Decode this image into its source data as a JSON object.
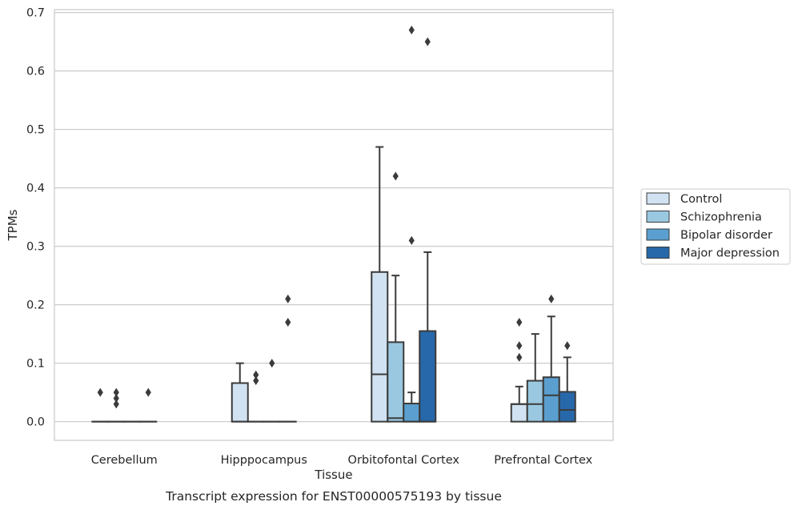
{
  "caption": "Transcript expression for ENST00000575193 by tissue",
  "chart_data": {
    "type": "box",
    "xlabel": "Tissue",
    "ylabel": "TPMs",
    "ylim": [
      -0.032,
      0.705
    ],
    "yticks": [
      "0.0",
      "0.1",
      "0.2",
      "0.3",
      "0.4",
      "0.5",
      "0.6",
      "0.7"
    ],
    "grid": "horizontal",
    "legend_position": "right",
    "categories": [
      "Cerebellum",
      "Hipppocampus",
      "Orbitofontal Cortex",
      "Prefrontal Cortex"
    ],
    "series": [
      {
        "name": "Control",
        "color": "#d1e2f2",
        "boxes": [
          {
            "q1": 0,
            "median": 0,
            "q3": 0,
            "whisker_low": 0,
            "whisker_high": 0,
            "outliers": [
              0.05
            ]
          },
          {
            "q1": 0,
            "median": 0,
            "q3": 0.066,
            "whisker_low": 0,
            "whisker_high": 0.1,
            "outliers": []
          },
          {
            "q1": 0,
            "median": 0.081,
            "q3": 0.256,
            "whisker_low": 0,
            "whisker_high": 0.47,
            "outliers": []
          },
          {
            "q1": 0,
            "median": 0.03,
            "q3": 0.03,
            "whisker_low": 0,
            "whisker_high": 0.06,
            "outliers": [
              0.11,
              0.13,
              0.17
            ]
          }
        ]
      },
      {
        "name": "Schizophrenia",
        "color": "#9ac8e0",
        "boxes": [
          {
            "q1": 0,
            "median": 0,
            "q3": 0,
            "whisker_low": 0,
            "whisker_high": 0,
            "outliers": [
              0.03,
              0.04,
              0.05
            ]
          },
          {
            "q1": 0,
            "median": 0,
            "q3": 0,
            "whisker_low": 0,
            "whisker_high": 0,
            "outliers": [
              0.07,
              0.08
            ]
          },
          {
            "q1": 0,
            "median": 0.006,
            "q3": 0.136,
            "whisker_low": 0,
            "whisker_high": 0.25,
            "outliers": [
              0.42
            ]
          },
          {
            "q1": 0,
            "median": 0.03,
            "q3": 0.07,
            "whisker_low": 0,
            "whisker_high": 0.15,
            "outliers": []
          }
        ]
      },
      {
        "name": "Bipolar disorder",
        "color": "#5a9fcf",
        "boxes": [
          {
            "q1": 0,
            "median": 0,
            "q3": 0,
            "whisker_low": 0,
            "whisker_high": 0,
            "outliers": []
          },
          {
            "q1": 0,
            "median": 0,
            "q3": 0,
            "whisker_low": 0,
            "whisker_high": 0,
            "outliers": [
              0.1
            ]
          },
          {
            "q1": 0,
            "median": 0,
            "q3": 0.031,
            "whisker_low": 0,
            "whisker_high": 0.05,
            "outliers": [
              0.31,
              0.67
            ]
          },
          {
            "q1": 0,
            "median": 0.045,
            "q3": 0.076,
            "whisker_low": 0,
            "whisker_high": 0.18,
            "outliers": [
              0.21
            ]
          }
        ]
      },
      {
        "name": "Major depression",
        "color": "#2768aa",
        "boxes": [
          {
            "q1": 0,
            "median": 0,
            "q3": 0,
            "whisker_low": 0,
            "whisker_high": 0,
            "outliers": [
              0.05
            ]
          },
          {
            "q1": 0,
            "median": 0,
            "q3": 0,
            "whisker_low": 0,
            "whisker_high": 0,
            "outliers": [
              0.17,
              0.21
            ]
          },
          {
            "q1": 0,
            "median": 0,
            "q3": 0.155,
            "whisker_low": 0,
            "whisker_high": 0.29,
            "outliers": [
              0.65
            ]
          },
          {
            "q1": 0,
            "median": 0.02,
            "q3": 0.051,
            "whisker_low": 0,
            "whisker_high": 0.11,
            "outliers": [
              0.13
            ]
          }
        ]
      }
    ]
  }
}
